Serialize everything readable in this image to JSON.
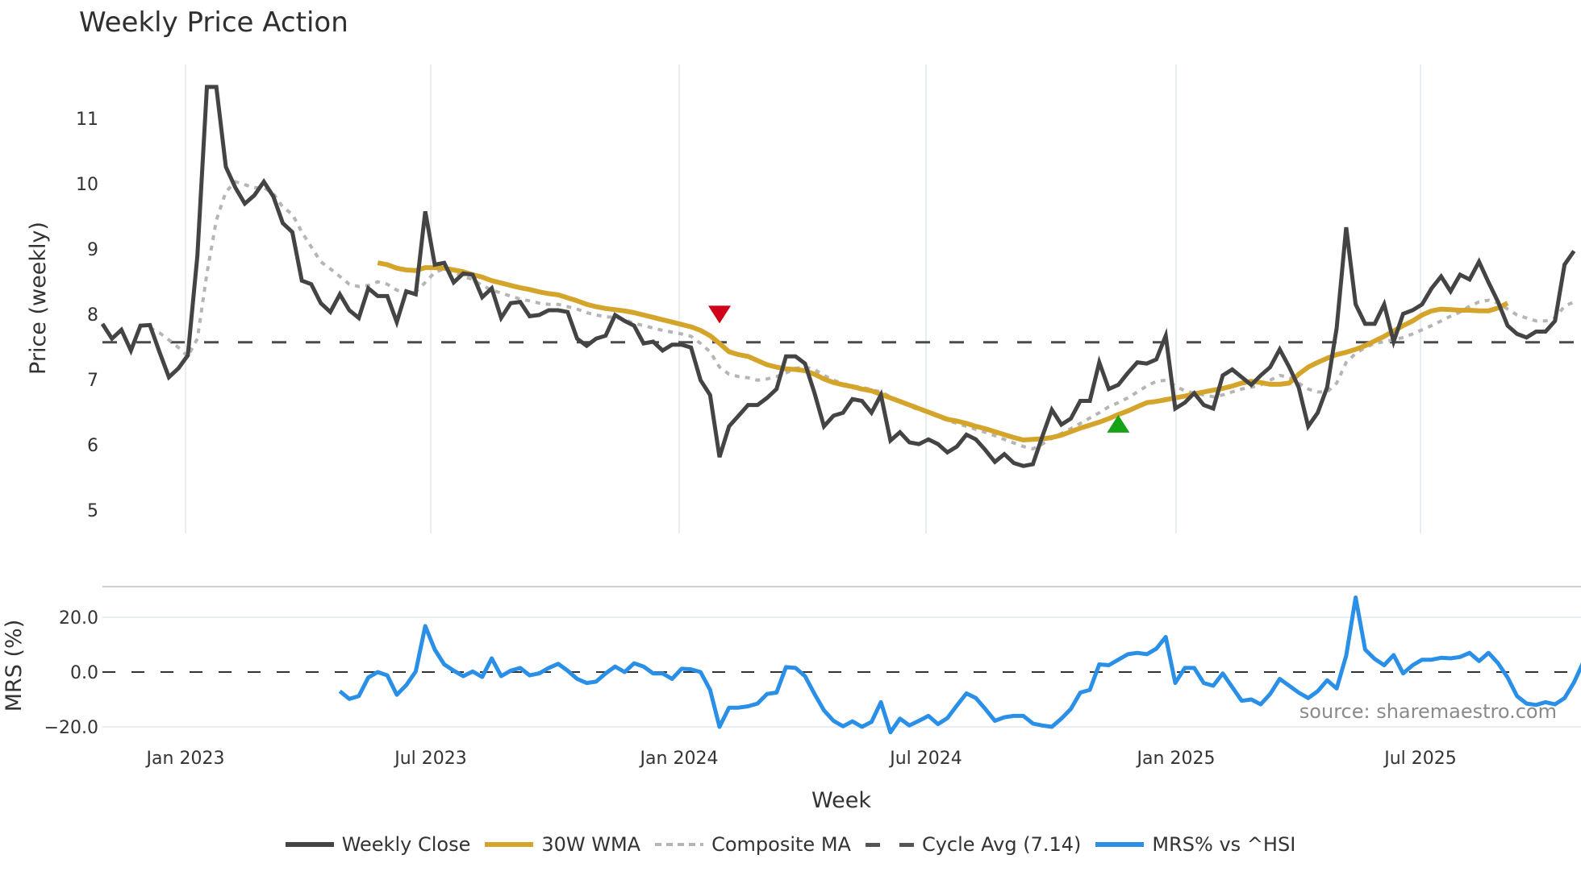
{
  "title": "Weekly Price Action",
  "source_label": "source: sharemaestro.com",
  "legend": [
    {
      "key": "close",
      "label": "Weekly Close"
    },
    {
      "key": "wma",
      "label": "30W WMA"
    },
    {
      "key": "comp",
      "label": "Composite MA"
    },
    {
      "key": "cycle",
      "label": "Cycle Avg (7.14)"
    },
    {
      "key": "mrs",
      "label": "MRS% vs ^HSI"
    }
  ],
  "colors": {
    "close": "#444444",
    "wma": "#d4a52a",
    "composite": "#b5b5b5",
    "cycle": "#4a4a4a",
    "mrs": "#2a8fe6",
    "sell_marker": "#d0021b",
    "buy_marker": "#17a317",
    "grid": "#e8edf3"
  },
  "chart_data": [
    {
      "type": "line",
      "title": "Weekly Price Action",
      "xlabel": "",
      "ylabel": "Price (weekly)",
      "yticks": [
        5,
        6,
        7,
        8,
        9,
        10,
        11
      ],
      "ylim": [
        4.7,
        11.9
      ],
      "xticks": [
        "Jan 2023",
        "Jul 2023",
        "Jan 2024",
        "Jul 2024",
        "Jan 2025",
        "Jul 2025"
      ],
      "grid": true,
      "reference_line": {
        "label": "Cycle Avg (7.14)",
        "value": 7.14
      },
      "markers": [
        {
          "type": "sell",
          "shape": "triangle-down",
          "week_index": 65,
          "value": 7.62
        },
        {
          "type": "buy",
          "shape": "triangle-up",
          "week_index": 107,
          "value": 5.75
        }
      ],
      "series": [
        {
          "name": "Weekly Close",
          "start_week": 0,
          "values": [
            7.45,
            7.2,
            7.35,
            7.0,
            7.42,
            7.43,
            6.98,
            6.55,
            6.7,
            6.92,
            8.6,
            11.45,
            11.45,
            10.1,
            9.75,
            9.48,
            9.62,
            9.85,
            9.6,
            9.15,
            9.0,
            8.18,
            8.12,
            7.8,
            7.65,
            7.95,
            7.68,
            7.55,
            8.05,
            7.92,
            7.92,
            7.48,
            8.0,
            7.95,
            9.35,
            8.45,
            8.48,
            8.15,
            8.3,
            8.28,
            7.9,
            8.05,
            7.55,
            7.8,
            7.82,
            7.58,
            7.6,
            7.68,
            7.68,
            7.65,
            7.2,
            7.08,
            7.2,
            7.25,
            7.6,
            7.5,
            7.42,
            7.12,
            7.15,
            7.0,
            7.1,
            7.1,
            7.05,
            6.5,
            6.25,
            5.2,
            5.72,
            5.9,
            6.08,
            6.08,
            6.2,
            6.35,
            6.9,
            6.9,
            6.78,
            6.28,
            5.72,
            5.9,
            5.95,
            6.18,
            6.15,
            5.95,
            6.25,
            5.48,
            5.62,
            5.45,
            5.42,
            5.5,
            5.42,
            5.28,
            5.38,
            5.58,
            5.5,
            5.32,
            5.12,
            5.25,
            5.1,
            5.05,
            5.08,
            5.55,
            6.0,
            5.75,
            5.85,
            6.15,
            6.15,
            6.8,
            6.35,
            6.42,
            6.62,
            6.8,
            6.78,
            6.85,
            7.25,
            6.02,
            6.12,
            6.28,
            6.08,
            6.02,
            6.58,
            6.68,
            6.55,
            6.42,
            6.58,
            6.72,
            7.02,
            6.72,
            6.38,
            5.72,
            5.95,
            6.38,
            7.38,
            9.08,
            7.78,
            7.45,
            7.45,
            7.78,
            7.15,
            7.62,
            7.68,
            7.78,
            8.05,
            8.25,
            8.0,
            8.28,
            8.2,
            8.5,
            8.15,
            7.82,
            7.42,
            7.28,
            7.22,
            7.32,
            7.32,
            7.5,
            8.45,
            8.68
          ]
        },
        {
          "name": "30W WMA",
          "start_week": 29,
          "values": [
            8.48,
            8.45,
            8.39,
            8.36,
            8.35,
            8.4,
            8.4,
            8.39,
            8.36,
            8.33,
            8.28,
            8.24,
            8.18,
            8.14,
            8.1,
            8.06,
            8.03,
            7.99,
            7.96,
            7.94,
            7.89,
            7.84,
            7.78,
            7.74,
            7.71,
            7.69,
            7.67,
            7.64,
            7.6,
            7.56,
            7.52,
            7.48,
            7.44,
            7.4,
            7.34,
            7.25,
            7.12,
            6.98,
            6.93,
            6.9,
            6.83,
            6.76,
            6.72,
            6.69,
            6.68,
            6.66,
            6.6,
            6.52,
            6.46,
            6.42,
            6.39,
            6.35,
            6.32,
            6.26,
            6.2,
            6.14,
            6.08,
            6.02,
            5.96,
            5.9,
            5.84,
            5.81,
            5.77,
            5.72,
            5.68,
            5.63,
            5.58,
            5.53,
            5.49,
            5.5,
            5.51,
            5.53,
            5.57,
            5.63,
            5.69,
            5.74,
            5.79,
            5.85,
            5.92,
            5.98,
            6.05,
            6.12,
            6.14,
            6.17,
            6.2,
            6.23,
            6.27,
            6.3,
            6.33,
            6.36,
            6.4,
            6.45,
            6.48,
            6.46,
            6.43,
            6.43,
            6.45,
            6.6,
            6.72,
            6.8,
            6.87,
            6.93,
            6.97,
            7.02,
            7.08,
            7.16,
            7.24,
            7.33,
            7.42,
            7.5,
            7.6,
            7.67,
            7.7,
            7.69,
            7.68,
            7.68,
            7.67,
            7.67,
            7.72,
            7.8
          ]
        },
        {
          "name": "Composite MA",
          "start_week": 0,
          "values": [
            null,
            null,
            null,
            null,
            null,
            7.38,
            7.3,
            7.18,
            7.05,
            6.9,
            7.2,
            8.3,
            9.2,
            9.68,
            9.85,
            9.8,
            9.75,
            9.75,
            9.65,
            9.42,
            9.3,
            9.0,
            8.75,
            8.5,
            8.38,
            8.25,
            8.12,
            8.08,
            8.1,
            8.16,
            8.12,
            8.02,
            7.97,
            7.99,
            8.15,
            8.32,
            8.38,
            8.32,
            8.25,
            8.2,
            8.1,
            8.02,
            7.97,
            7.92,
            7.87,
            7.84,
            7.8,
            7.78,
            7.78,
            7.74,
            7.7,
            7.64,
            7.6,
            7.57,
            7.56,
            7.52,
            7.46,
            7.42,
            7.38,
            7.34,
            7.31,
            7.28,
            7.24,
            7.12,
            6.98,
            6.72,
            6.6,
            6.56,
            6.54,
            6.5,
            6.52,
            6.56,
            6.62,
            6.7,
            6.72,
            6.68,
            6.58,
            6.5,
            6.44,
            6.4,
            6.38,
            6.34,
            6.3,
            6.22,
            6.14,
            6.06,
            6.0,
            5.95,
            5.88,
            5.82,
            5.77,
            5.72,
            5.67,
            5.62,
            5.56,
            5.5,
            5.44,
            5.38,
            5.34,
            5.42,
            5.52,
            5.6,
            5.68,
            5.77,
            5.86,
            5.95,
            6.05,
            6.12,
            6.2,
            6.3,
            6.4,
            6.48,
            6.5,
            6.4,
            6.32,
            6.28,
            6.25,
            6.22,
            6.25,
            6.3,
            6.35,
            6.38,
            6.42,
            6.5,
            6.58,
            6.55,
            6.45,
            6.35,
            6.3,
            6.3,
            6.45,
            6.8,
            6.95,
            7.05,
            7.12,
            7.15,
            7.18,
            7.22,
            7.28,
            7.35,
            7.42,
            7.5,
            7.58,
            7.65,
            7.75,
            7.82,
            7.85,
            7.8,
            7.7,
            7.6,
            7.55,
            7.5,
            7.5,
            7.55,
            7.75,
            7.82
          ]
        },
        {
          "name": "Cycle Avg (7.14)",
          "values": [
            7.14
          ]
        }
      ]
    },
    {
      "type": "line",
      "title": "",
      "xlabel": "Week",
      "ylabel": "MRS (%)",
      "yticks": [
        -20.0,
        0.0,
        20.0
      ],
      "ytick_labels": [
        "−20.0",
        "0.0",
        "20.0"
      ],
      "ylim": [
        -26,
        31
      ],
      "xticks": [
        "Jan 2023",
        "Jul 2023",
        "Jan 2024",
        "Jul 2024",
        "Jan 2025",
        "Jul 2025"
      ],
      "grid": true,
      "reference_line": {
        "value": 0.0
      },
      "series": [
        {
          "name": "MRS% vs ^HSI",
          "start_week": 25,
          "values": [
            -7.0,
            -9.8,
            -8.8,
            -2.0,
            0.0,
            -1.2,
            -8.3,
            -4.8,
            0.2,
            16.8,
            8.2,
            2.8,
            0.5,
            -1.5,
            0.2,
            -1.8,
            5.0,
            -1.5,
            0.5,
            1.5,
            -1.2,
            -0.5,
            1.5,
            3.0,
            0.5,
            -2.5,
            -4.0,
            -3.5,
            -0.5,
            2.0,
            0.0,
            3.2,
            2.0,
            -0.5,
            -0.5,
            -2.5,
            1.2,
            1.0,
            0.0,
            -6.5,
            -20.0,
            -13.0,
            -13.0,
            -12.5,
            -11.5,
            -8.0,
            -7.5,
            1.8,
            1.5,
            -1.5,
            -8.0,
            -14.0,
            -17.8,
            -19.8,
            -18.0,
            -20.0,
            -18.2,
            -11.0,
            -22.0,
            -17.0,
            -19.5,
            -17.8,
            -16.0,
            -19.0,
            -16.8,
            -12.2,
            -7.8,
            -9.5,
            -13.5,
            -17.8,
            -16.5,
            -16.0,
            -16.0,
            -18.8,
            -19.5,
            -20.0,
            -17.0,
            -13.5,
            -7.5,
            -6.5,
            2.8,
            2.5,
            4.5,
            6.5,
            7.0,
            6.5,
            8.5,
            12.8,
            -4.0,
            1.5,
            1.5,
            -4.0,
            -5.0,
            -0.5,
            -5.5,
            -10.5,
            -10.0,
            -11.8,
            -8.0,
            -2.5,
            -5.0,
            -7.5,
            -9.5,
            -7.0,
            -3.0,
            -6.0,
            6.0,
            27.2,
            8.2,
            4.8,
            2.5,
            6.2,
            -0.5,
            2.5,
            4.5,
            4.5,
            5.2,
            5.0,
            5.5,
            7.0,
            4.0,
            7.0,
            3.2,
            -2.0,
            -8.8,
            -11.5,
            -12.0,
            -11.0,
            -11.8,
            -9.5,
            -3.8,
            3.8,
            5.5,
            6.2,
            -1.5,
            4.2,
            7.2,
            7.0
          ]
        }
      ]
    }
  ],
  "axes": {
    "price_ylabel": "Price (weekly)",
    "mrs_ylabel": "MRS (%)",
    "xlabel": "Week",
    "price_ticks": [
      "11",
      "10",
      "9",
      "8",
      "7",
      "6",
      "5"
    ],
    "mrs_ticks": [
      "20.0",
      "0.0",
      "−20.0"
    ],
    "x_ticks": [
      "Jan 2023",
      "Jul 2023",
      "Jan 2024",
      "Jul 2024",
      "Jan 2025",
      "Jul 2025"
    ]
  }
}
